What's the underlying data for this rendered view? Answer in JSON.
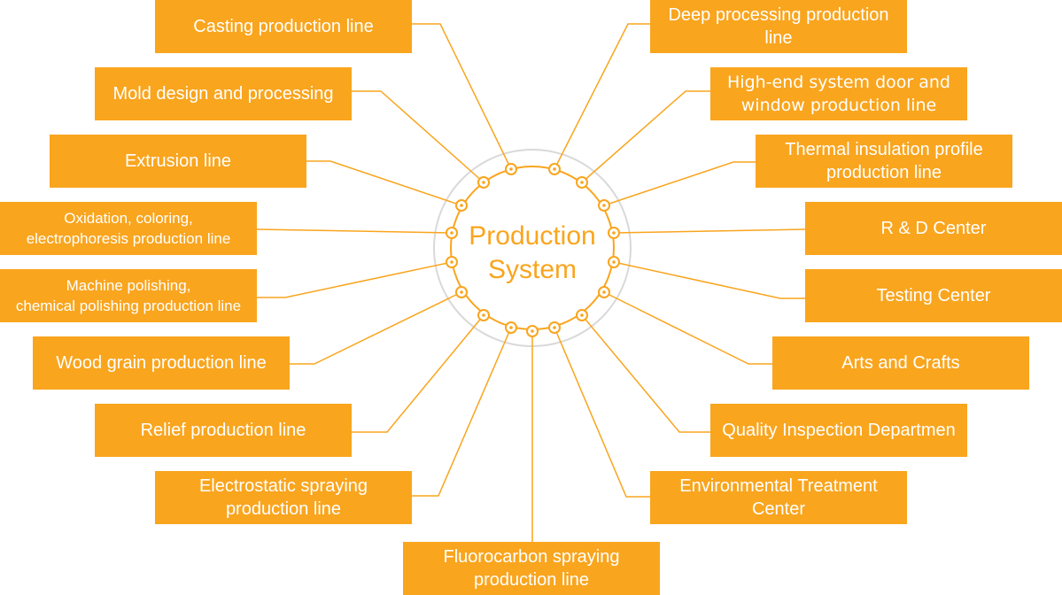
{
  "center": {
    "title": "Production\nSystem"
  },
  "colors": {
    "accent": "#F9A51E",
    "ring_outer": "#D9D9D9",
    "box_text": "#FFFFFF"
  },
  "left_items": [
    {
      "label": "Casting production line"
    },
    {
      "label": "Mold design and processing"
    },
    {
      "label": "Extrusion line"
    },
    {
      "label": "Oxidation, coloring,\nelectrophoresis production line"
    },
    {
      "label": "Machine polishing,\nchemical polishing production line"
    },
    {
      "label": "Wood grain production line"
    },
    {
      "label": "Relief production line"
    },
    {
      "label": "Electrostatic spraying\nproduction line"
    }
  ],
  "bottom_item": {
    "label": "Fluorocarbon spraying\nproduction line"
  },
  "right_items": [
    {
      "label": "Deep processing production\nline"
    },
    {
      "label": "High-end system door and\nwindow production line"
    },
    {
      "label": "Thermal insulation profile\nproduction line"
    },
    {
      "label": "R & D Center"
    },
    {
      "label": "Testing Center"
    },
    {
      "label": "Arts and Crafts"
    },
    {
      "label": "Quality Inspection Departmen"
    },
    {
      "label": "Environmental Treatment\nCenter"
    }
  ]
}
